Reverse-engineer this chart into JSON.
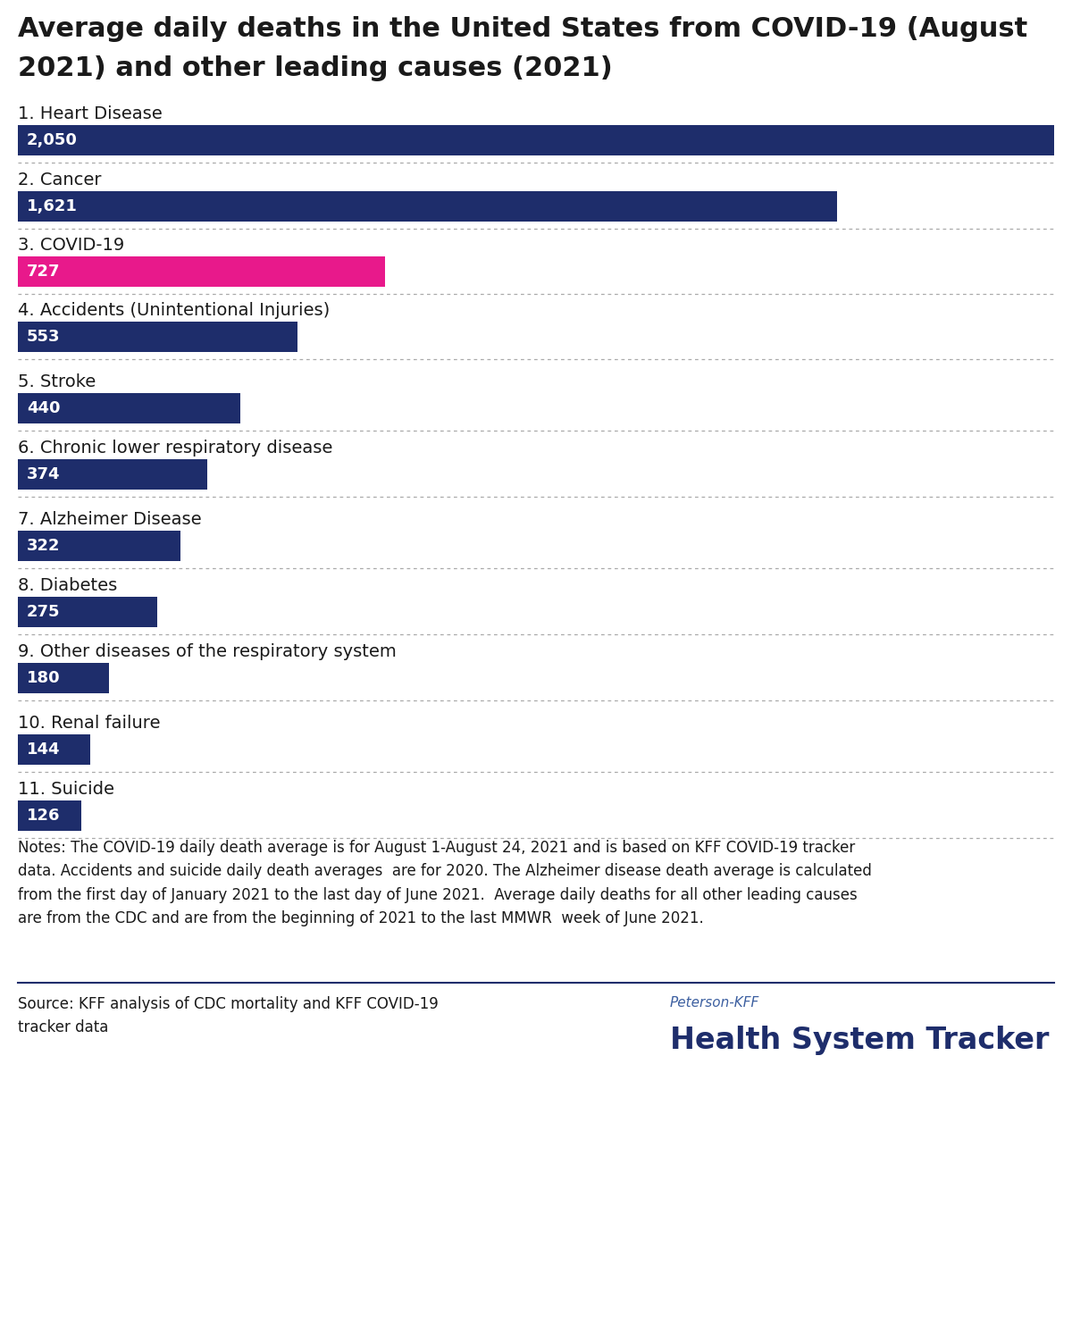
{
  "title_line1": "Average daily deaths in the United States from COVID-19 (August",
  "title_line2": "2021) and other leading causes (2021)",
  "categories": [
    "1. Heart Disease",
    "2. Cancer",
    "3. COVID-19",
    "4. Accidents (Unintentional Injuries)",
    "5. Stroke",
    "6. Chronic lower respiratory disease",
    "7. Alzheimer Disease",
    "8. Diabetes",
    "9. Other diseases of the respiratory system",
    "10. Renal failure",
    "11. Suicide"
  ],
  "values": [
    2050,
    1621,
    727,
    553,
    440,
    374,
    322,
    275,
    180,
    144,
    126
  ],
  "bar_colors": [
    "#1e2d6b",
    "#1e2d6b",
    "#e8198b",
    "#1e2d6b",
    "#1e2d6b",
    "#1e2d6b",
    "#1e2d6b",
    "#1e2d6b",
    "#1e2d6b",
    "#1e2d6b",
    "#1e2d6b"
  ],
  "value_labels": [
    "2,050",
    "1,621",
    "727",
    "553",
    "440",
    "374",
    "322",
    "275",
    "180",
    "144",
    "126"
  ],
  "max_value": 2050,
  "background_color": "#ffffff",
  "title_color": "#1a1a1a",
  "category_color": "#1a1a1a",
  "bar_text_color": "#ffffff",
  "notes_text": "Notes: The COVID-19 daily death average is for August 1-August 24, 2021 and is based on KFF COVID-19 tracker\ndata. Accidents and suicide daily death averages  are for 2020. The Alzheimer disease death average is calculated\nfrom the first day of January 2021 to the last day of June 2021.  Average daily deaths for all other leading causes\nare from the CDC and are from the beginning of 2021 to the last MMWR  week of June 2021.",
  "source_text": "Source: KFF analysis of CDC mortality and KFF COVID-19\ntracker data",
  "brand_text1": "Peterson-KFF",
  "brand_text2": "Health System Tracker",
  "brand_color1": "#3c5fa0",
  "brand_color2": "#1e2d6b",
  "title_fontsize": 22,
  "category_fontsize": 14,
  "bar_value_fontsize": 13,
  "notes_fontsize": 12,
  "source_fontsize": 12
}
